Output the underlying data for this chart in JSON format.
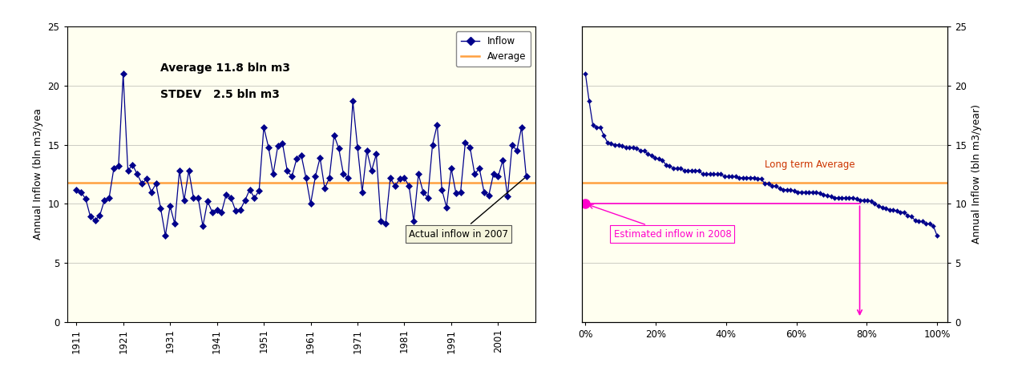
{
  "inflow_years": [
    1911,
    1912,
    1913,
    1914,
    1915,
    1916,
    1917,
    1918,
    1919,
    1920,
    1921,
    1922,
    1923,
    1924,
    1925,
    1926,
    1927,
    1928,
    1929,
    1930,
    1931,
    1932,
    1933,
    1934,
    1935,
    1936,
    1937,
    1938,
    1939,
    1940,
    1941,
    1942,
    1943,
    1944,
    1945,
    1946,
    1947,
    1948,
    1949,
    1950,
    1951,
    1952,
    1953,
    1954,
    1955,
    1956,
    1957,
    1958,
    1959,
    1960,
    1961,
    1962,
    1963,
    1964,
    1965,
    1966,
    1967,
    1968,
    1969,
    1970,
    1971,
    1972,
    1973,
    1974,
    1975,
    1976,
    1977,
    1978,
    1979,
    1980,
    1981,
    1982,
    1983,
    1984,
    1985,
    1986,
    1987,
    1988,
    1989,
    1990,
    1991,
    1992,
    1993,
    1994,
    1995,
    1996,
    1997,
    1998,
    1999,
    2000,
    2001,
    2002,
    2003,
    2004,
    2005,
    2006,
    2007
  ],
  "inflow_values": [
    11.2,
    11.0,
    10.4,
    8.9,
    8.6,
    9.0,
    10.3,
    10.5,
    13.0,
    13.2,
    21.0,
    12.8,
    13.3,
    12.5,
    11.7,
    12.1,
    11.0,
    11.7,
    9.6,
    7.3,
    9.8,
    8.3,
    12.8,
    10.3,
    12.8,
    10.5,
    10.5,
    8.1,
    10.2,
    9.3,
    9.5,
    9.3,
    10.8,
    10.5,
    9.4,
    9.5,
    10.3,
    11.2,
    10.5,
    11.1,
    16.5,
    14.8,
    12.5,
    14.9,
    15.1,
    12.8,
    12.3,
    13.8,
    14.1,
    12.2,
    10.0,
    12.3,
    13.9,
    11.3,
    12.2,
    15.8,
    14.7,
    12.5,
    12.2,
    18.7,
    14.8,
    11.0,
    14.5,
    12.8,
    14.2,
    8.5,
    8.3,
    12.2,
    11.5,
    12.1,
    12.2,
    11.5,
    8.5,
    12.5,
    11.0,
    10.5,
    15.0,
    16.7,
    11.2,
    9.7,
    13.0,
    10.9,
    11.0,
    15.2,
    14.8,
    12.5,
    13.0,
    11.0,
    10.7,
    12.5,
    12.3,
    13.7,
    10.6,
    15.0,
    14.5,
    16.5,
    12.3
  ],
  "average": 11.8,
  "stdev": 2.5,
  "bg_color": "#FFFFF0",
  "line_color": "#00008B",
  "avg_line_color": "#FFA040",
  "annotation_text1": "Average 11.8 bln m3",
  "annotation_text2": "STDEV   2.5 bln m3",
  "annotation_box": "Actual inflow in 2007",
  "ylabel_left": "Annual Inflow (bln m3/yea",
  "ylabel_right": "Annual Inflow (bln m3/year)",
  "ylim": [
    0,
    25
  ],
  "legend_inflow": "Inflow",
  "legend_avg": "Average",
  "long_term_avg_label": "Long term Average",
  "estimated_label": "Estimated inflow in 2008",
  "estimated_exceedance_pct": 78.0,
  "estimated_value": 10.0,
  "pink_color": "#FF00CC",
  "long_term_avg_color": "#CC3300",
  "grid_color": "#888888"
}
